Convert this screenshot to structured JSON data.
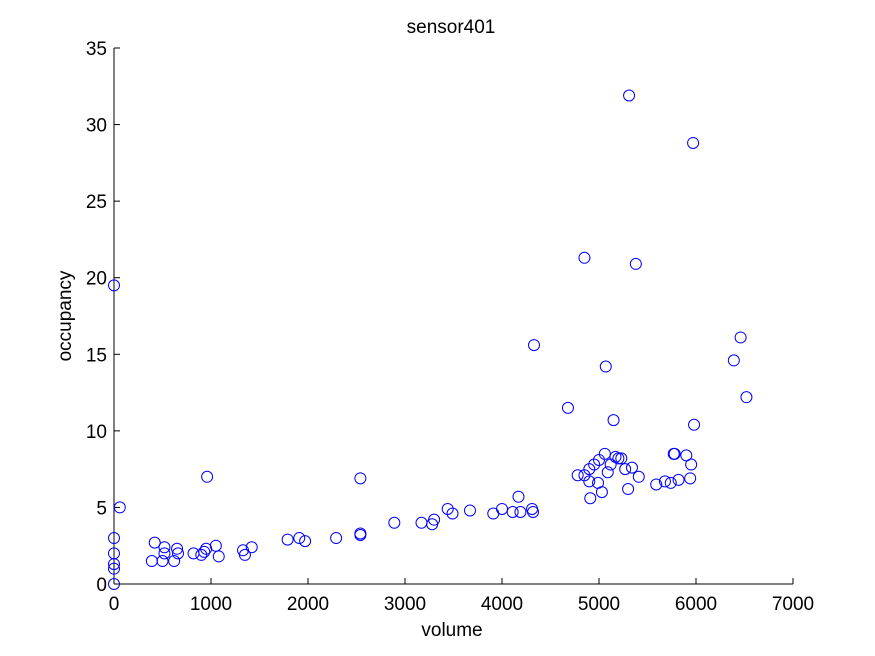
{
  "chart_data": {
    "type": "scatter",
    "title": "sensor401",
    "xlabel": "volume",
    "ylabel": "occupancy",
    "xlim": [
      0,
      7000
    ],
    "ylim": [
      0,
      35
    ],
    "xticks": [
      0,
      1000,
      2000,
      3000,
      4000,
      5000,
      6000,
      7000
    ],
    "yticks": [
      0,
      5,
      10,
      15,
      20,
      25,
      30,
      35
    ],
    "grid": false,
    "marker": "open-circle",
    "color": "#0000ff",
    "series": [
      {
        "points": [
          [
            0,
            0
          ],
          [
            0,
            1
          ],
          [
            0,
            1.3
          ],
          [
            0,
            2
          ],
          [
            0,
            3
          ],
          [
            0,
            19.5
          ],
          [
            60,
            5
          ],
          [
            390,
            1.5
          ],
          [
            420,
            2.7
          ],
          [
            500,
            1.5
          ],
          [
            520,
            2.4
          ],
          [
            520,
            2.0
          ],
          [
            620,
            1.5
          ],
          [
            650,
            2.3
          ],
          [
            660,
            2.0
          ],
          [
            820,
            2.0
          ],
          [
            900,
            1.9
          ],
          [
            930,
            2.1
          ],
          [
            950,
            2.3
          ],
          [
            960,
            7.0
          ],
          [
            1050,
            2.5
          ],
          [
            1080,
            1.8
          ],
          [
            1330,
            2.2
          ],
          [
            1350,
            1.9
          ],
          [
            1420,
            2.4
          ],
          [
            1790,
            2.9
          ],
          [
            1910,
            3.0
          ],
          [
            1970,
            2.8
          ],
          [
            2290,
            3.0
          ],
          [
            2540,
            3.3
          ],
          [
            2540,
            3.2
          ],
          [
            2540,
            6.9
          ],
          [
            2890,
            4.0
          ],
          [
            3170,
            4.0
          ],
          [
            3280,
            3.9
          ],
          [
            3300,
            4.2
          ],
          [
            3440,
            4.9
          ],
          [
            3490,
            4.6
          ],
          [
            3670,
            4.8
          ],
          [
            3910,
            4.6
          ],
          [
            4000,
            4.9
          ],
          [
            4110,
            4.7
          ],
          [
            4170,
            5.7
          ],
          [
            4190,
            4.7
          ],
          [
            4310,
            4.9
          ],
          [
            4320,
            4.7
          ],
          [
            4330,
            15.6
          ],
          [
            4680,
            11.5
          ],
          [
            4780,
            7.1
          ],
          [
            4850,
            7.1
          ],
          [
            4850,
            21.3
          ],
          [
            4900,
            6.7
          ],
          [
            4900,
            7.5
          ],
          [
            4910,
            5.6
          ],
          [
            4950,
            7.8
          ],
          [
            4990,
            6.6
          ],
          [
            5000,
            8.1
          ],
          [
            5030,
            6.0
          ],
          [
            5060,
            8.5
          ],
          [
            5070,
            14.2
          ],
          [
            5090,
            7.3
          ],
          [
            5120,
            7.8
          ],
          [
            5150,
            10.7
          ],
          [
            5170,
            8.3
          ],
          [
            5200,
            8.2
          ],
          [
            5230,
            8.2
          ],
          [
            5270,
            7.5
          ],
          [
            5300,
            6.2
          ],
          [
            5310,
            31.9
          ],
          [
            5340,
            7.6
          ],
          [
            5380,
            20.9
          ],
          [
            5410,
            7.0
          ],
          [
            5590,
            6.5
          ],
          [
            5680,
            6.7
          ],
          [
            5740,
            6.6
          ],
          [
            5770,
            8.5
          ],
          [
            5780,
            8.5
          ],
          [
            5820,
            6.8
          ],
          [
            5900,
            8.4
          ],
          [
            5940,
            6.9
          ],
          [
            5950,
            7.8
          ],
          [
            5970,
            28.8
          ],
          [
            5980,
            10.4
          ],
          [
            6390,
            14.6
          ],
          [
            6460,
            16.1
          ],
          [
            6520,
            12.2
          ]
        ]
      }
    ]
  }
}
